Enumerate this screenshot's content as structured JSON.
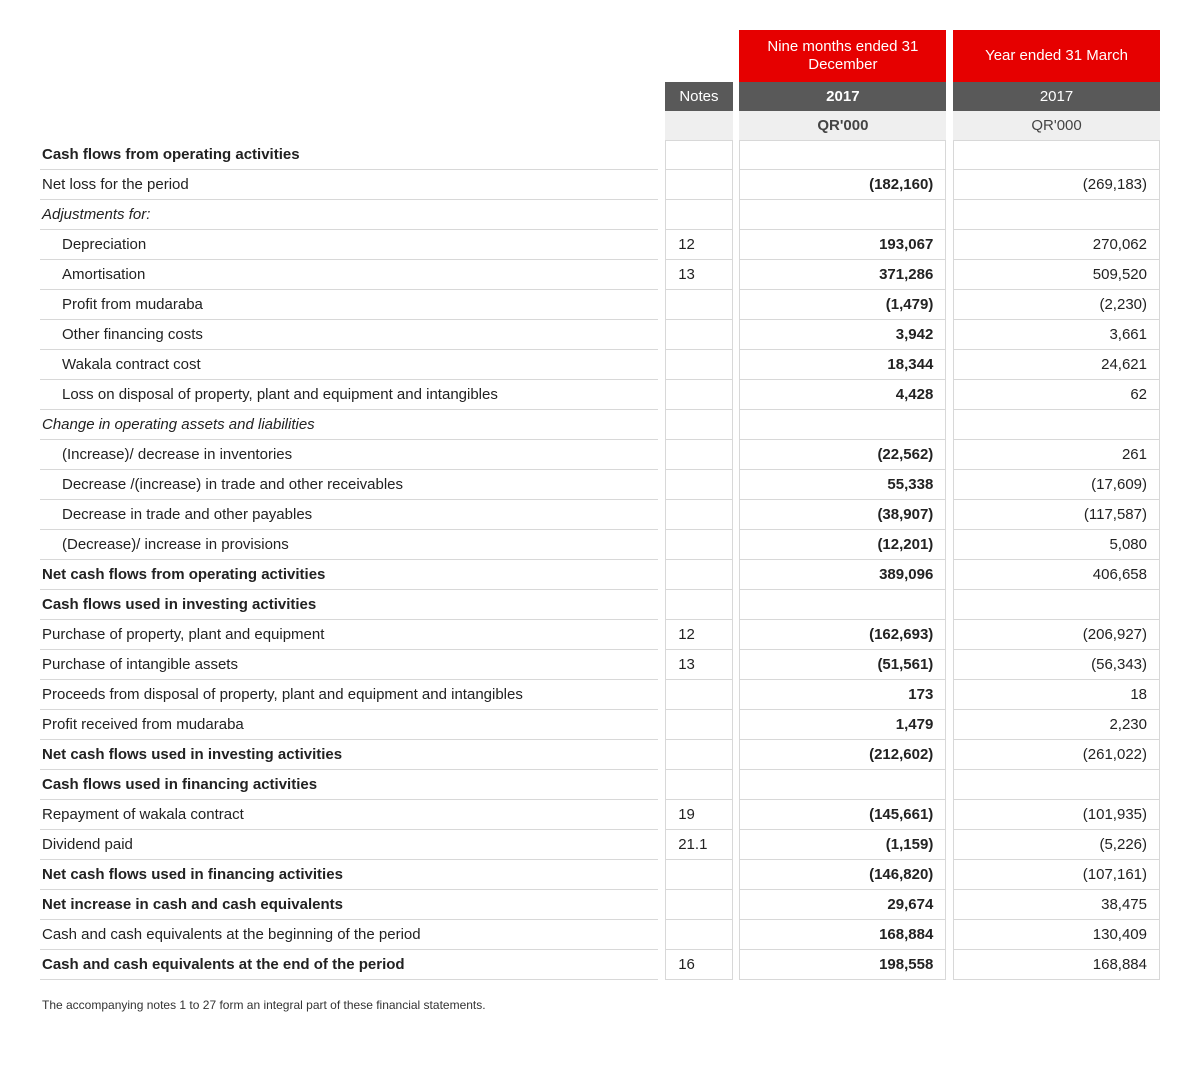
{
  "colors": {
    "brand_red": "#e60000",
    "header_grey": "#595959",
    "header_light": "#efefef",
    "rule": "#d8d8d8",
    "text": "#222222",
    "white": "#ffffff"
  },
  "header": {
    "notes_label": "Notes",
    "period1_title": "Nine months ended 31 December",
    "period1_year": "2017",
    "period1_unit": "QR'000",
    "period2_title": "Year ended 31 March",
    "period2_year": "2017",
    "period2_unit": "QR'000"
  },
  "rows": [
    {
      "label": "Cash flows from operating activities",
      "bold": true
    },
    {
      "label": "Net loss for the period",
      "dec": "(182,160)",
      "mar": "(269,183)"
    },
    {
      "label": "Adjustments for:",
      "italic": true
    },
    {
      "label": "Depreciation",
      "indent": 1,
      "notes": "12",
      "dec": "193,067",
      "mar": "270,062"
    },
    {
      "label": "Amortisation",
      "indent": 1,
      "notes": "13",
      "dec": "371,286",
      "mar": "509,520"
    },
    {
      "label": "Profit from mudaraba",
      "indent": 1,
      "dec": "(1,479)",
      "mar": "(2,230)"
    },
    {
      "label": "Other financing costs",
      "indent": 1,
      "dec": "3,942",
      "mar": "3,661"
    },
    {
      "label": "Wakala contract cost",
      "indent": 1,
      "dec": "18,344",
      "mar": "24,621"
    },
    {
      "label": "Loss on disposal of property, plant and equipment and intangibles",
      "indent": 1,
      "dec": "4,428",
      "mar": "62"
    },
    {
      "label": "Change in operating assets and liabilities",
      "italic": true
    },
    {
      "label": "(Increase)/ decrease in inventories",
      "indent": 1,
      "dec": "(22,562)",
      "mar": "261"
    },
    {
      "label": "Decrease /(increase) in trade and other receivables",
      "indent": 1,
      "dec": "55,338",
      "mar": "(17,609)"
    },
    {
      "label": "Decrease in trade and other payables",
      "indent": 1,
      "dec": "(38,907)",
      "mar": "(117,587)"
    },
    {
      "label": "(Decrease)/ increase in provisions",
      "indent": 1,
      "dec": "(12,201)",
      "mar": "5,080"
    },
    {
      "label": "Net cash flows from operating activities",
      "bold": true,
      "dec": "389,096",
      "mar": "406,658"
    },
    {
      "label": "Cash flows used in investing activities",
      "bold": true
    },
    {
      "label": "Purchase of property, plant and equipment",
      "notes": "12",
      "dec": "(162,693)",
      "mar": "(206,927)"
    },
    {
      "label": "Purchase of intangible assets",
      "notes": "13",
      "dec": "(51,561)",
      "mar": "(56,343)"
    },
    {
      "label": "Proceeds from disposal of property, plant and equipment and intangibles",
      "dec": "173",
      "mar": "18"
    },
    {
      "label": "Profit received from mudaraba",
      "dec": "1,479",
      "mar": "2,230"
    },
    {
      "label": "Net cash flows used in investing activities",
      "bold": true,
      "dec": "(212,602)",
      "mar": "(261,022)"
    },
    {
      "label": "Cash flows used in financing activities",
      "bold": true
    },
    {
      "label": "Repayment of wakala contract",
      "notes": "19",
      "dec": "(145,661)",
      "mar": "(101,935)"
    },
    {
      "label": "Dividend paid",
      "notes": "21.1",
      "dec": "(1,159)",
      "mar": "(5,226)"
    },
    {
      "label": "Net cash flows used in financing activities",
      "bold": true,
      "dec": "(146,820)",
      "mar": "(107,161)"
    },
    {
      "label": "Net increase in cash and cash equivalents",
      "bold": true,
      "dec": "29,674",
      "mar": "38,475"
    },
    {
      "label": "Cash and cash equivalents at the beginning of the period",
      "dec": "168,884",
      "mar": "130,409"
    },
    {
      "label": "Cash and cash equivalents at the end of the period",
      "bold": true,
      "notes": "16",
      "dec": "198,558",
      "mar": "168,884"
    }
  ],
  "footnote": "The accompanying notes 1 to 27 form an integral part of these financial statements."
}
